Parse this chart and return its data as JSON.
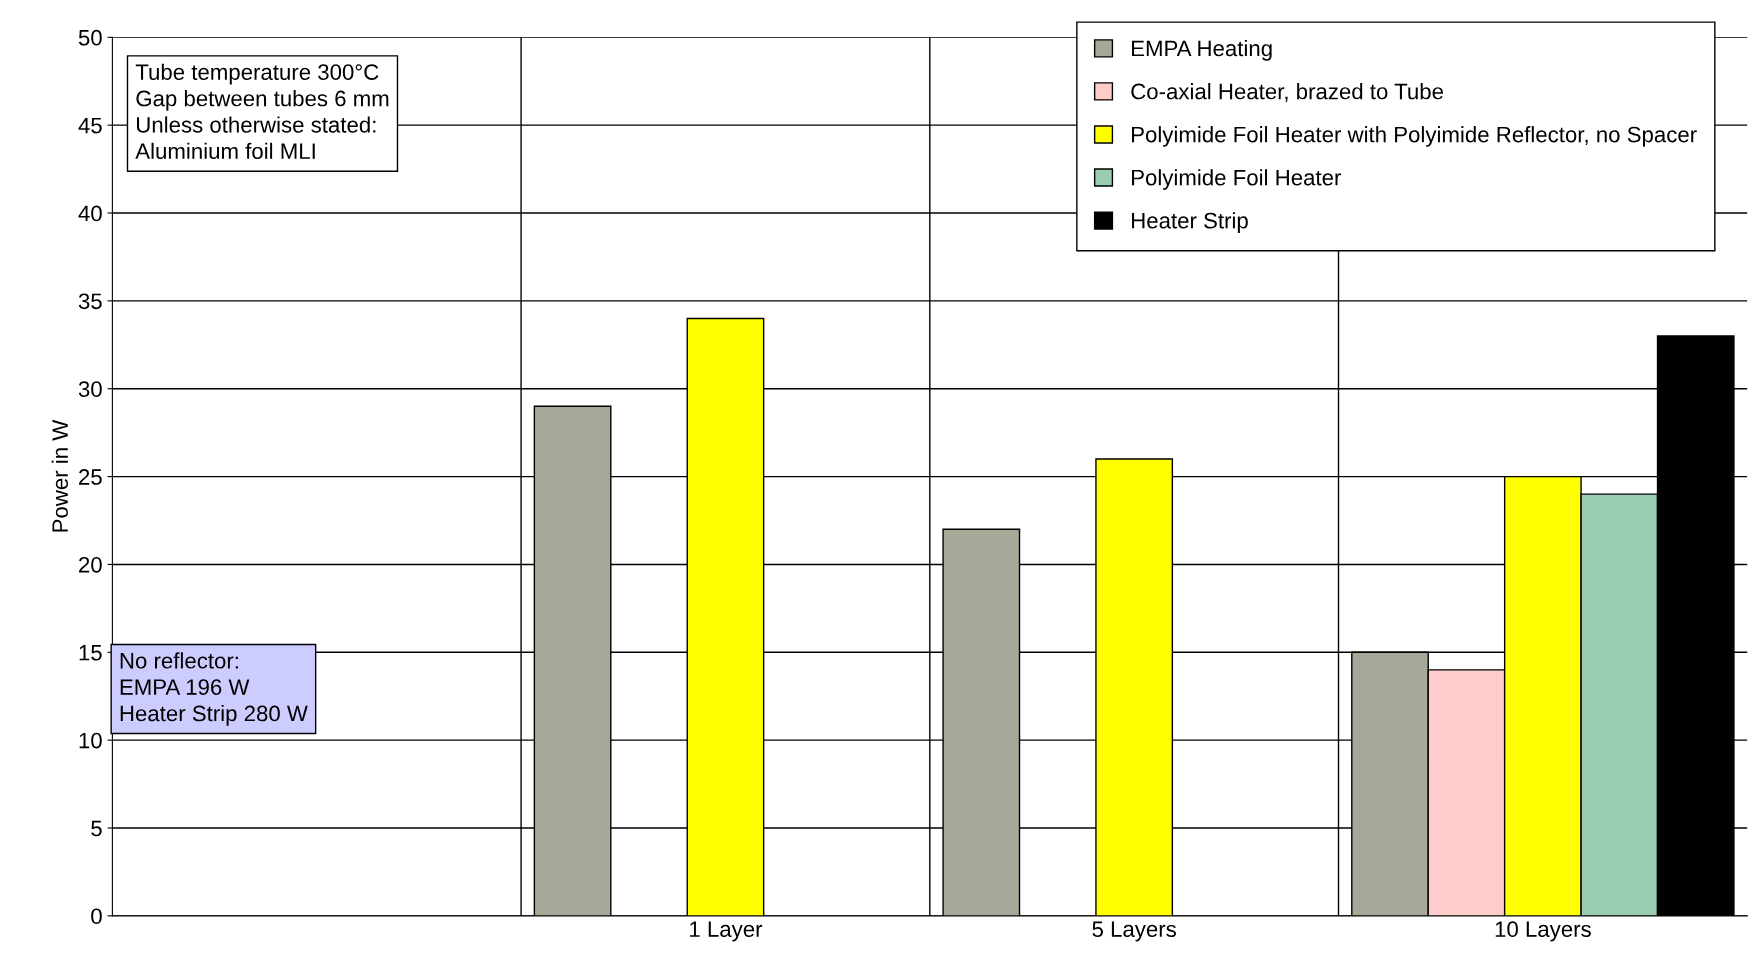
{
  "chart_data": {
    "type": "bar",
    "ylabel": "Power in W",
    "categories": [
      null,
      "1 Layer",
      "5 Layers",
      "10 Layers"
    ],
    "series": [
      {
        "name": "EMPA Heating",
        "color": "#a8a898",
        "values": [
          null,
          29,
          22,
          15
        ]
      },
      {
        "name": "Co-axial Heater, brazed to Tube",
        "color": "#ffcccc",
        "values": [
          null,
          null,
          null,
          14
        ]
      },
      {
        "name": "Polyimide Foil Heater with Polyimide Reflector, no Spacer",
        "color": "#ffff00",
        "values": [
          null,
          34,
          26,
          25
        ]
      },
      {
        "name": "Polyimide Foil Heater",
        "color": "#99ccb0",
        "values": [
          null,
          null,
          null,
          24
        ]
      },
      {
        "name": "Heater Strip",
        "color": "#000000",
        "values": [
          null,
          null,
          null,
          33
        ]
      }
    ],
    "ylim": [
      0,
      50
    ],
    "yticks": [
      0,
      5,
      10,
      15,
      20,
      25,
      30,
      35,
      40,
      45,
      50
    ],
    "grid": true,
    "legend": "top right",
    "annotations": [
      "Tube temperature 300°C\nGap between tubes 6 mm\nUnless otherwise stated:\nAluminium foil MLI",
      "No reflector:\nEMPA 196 W\nHeater Strip 280 W"
    ]
  }
}
